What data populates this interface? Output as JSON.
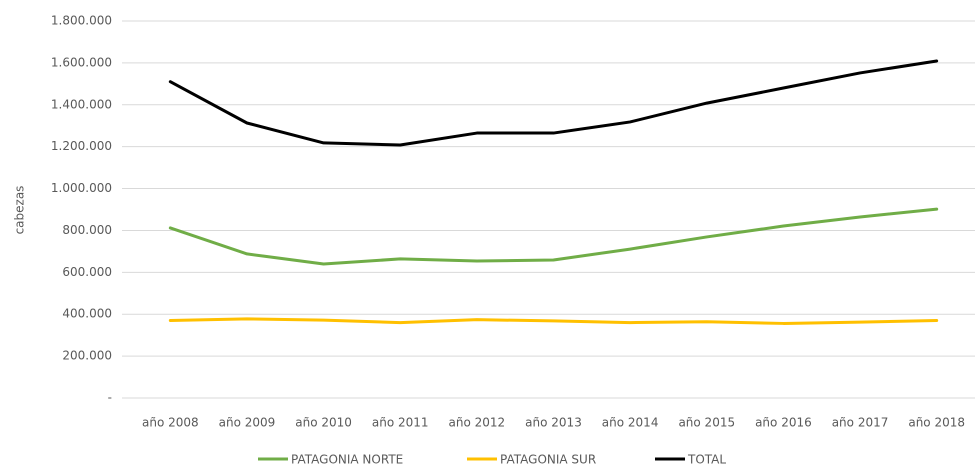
{
  "chart_data": {
    "type": "line",
    "y_label": "cabezas",
    "categories": [
      "año 2008",
      "año 2009",
      "año 2010",
      "año 2011",
      "año 2012",
      "año 2013",
      "año 2014",
      "año 2015",
      "año 2016",
      "año 2017",
      "año 2018"
    ],
    "series": [
      {
        "name": "PATAGONIA NORTE",
        "color": "#70ad47",
        "values": [
          812000,
          688000,
          640000,
          664000,
          654000,
          659000,
          711000,
          769000,
          821000,
          864000,
          902000
        ]
      },
      {
        "name": "PATAGONIA SUR",
        "color": "#ffc000",
        "values": [
          370000,
          378000,
          372000,
          360000,
          374000,
          368000,
          360000,
          364000,
          356000,
          362000,
          370000
        ]
      },
      {
        "name": "TOTAL",
        "color": "#000000",
        "values": [
          1510000,
          1313000,
          1218000,
          1208000,
          1265000,
          1265000,
          1318000,
          1408000,
          1480000,
          1552000,
          1609000
        ]
      }
    ],
    "ylim": [
      0,
      1800000
    ],
    "yticks": [
      {
        "value": 0,
        "label": "-"
      },
      {
        "value": 200000,
        "label": "200.000"
      },
      {
        "value": 400000,
        "label": "400.000"
      },
      {
        "value": 600000,
        "label": "600.000"
      },
      {
        "value": 800000,
        "label": "800.000"
      },
      {
        "value": 1000000,
        "label": "1.000.000"
      },
      {
        "value": 1200000,
        "label": "1.200.000"
      },
      {
        "value": 1400000,
        "label": "1.400.000"
      },
      {
        "value": 1600000,
        "label": "1.600.000"
      },
      {
        "value": 1800000,
        "label": "1.800.000"
      }
    ],
    "grid": true,
    "legend": "bottom"
  }
}
